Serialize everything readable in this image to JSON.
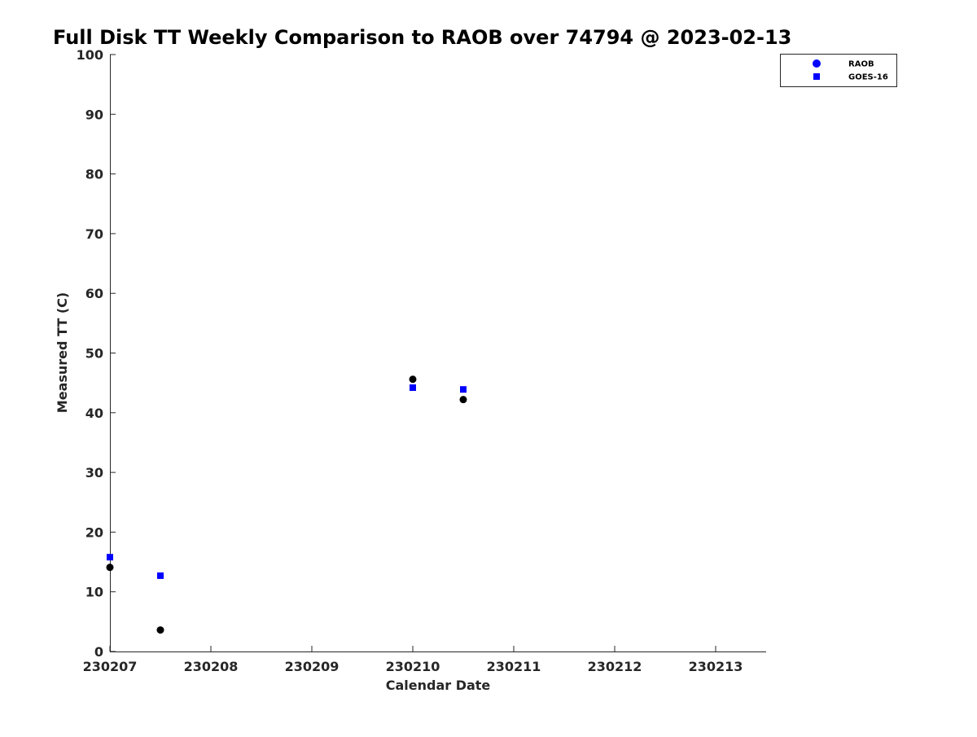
{
  "chart_data": {
    "type": "scatter",
    "title": "Full Disk TT Weekly Comparison to RAOB over 74794 @ 2023-02-13",
    "xlabel": "Calendar Date",
    "ylabel": "Measured TT (C)",
    "xlim": [
      230207,
      230213.5
    ],
    "ylim": [
      0,
      100
    ],
    "x_ticks": [
      230207,
      230208,
      230209,
      230210,
      230211,
      230212,
      230213
    ],
    "x_tick_labels": [
      "230207",
      "230208",
      "230209",
      "230210",
      "230211",
      "230212",
      "230213"
    ],
    "y_ticks": [
      0,
      10,
      20,
      30,
      40,
      50,
      60,
      70,
      80,
      90,
      100
    ],
    "y_tick_labels": [
      "0",
      "10",
      "20",
      "30",
      "40",
      "50",
      "60",
      "70",
      "80",
      "90",
      "100"
    ],
    "grid": false,
    "legend_position": "top-right",
    "series": [
      {
        "name": "RAOB",
        "marker": "circle",
        "legend_color": "#0000ff",
        "color": "#000000",
        "x": [
          230207,
          230207.5,
          230210,
          230210.5
        ],
        "y": [
          14.1,
          3.6,
          45.6,
          42.2
        ]
      },
      {
        "name": "GOES-16",
        "marker": "square",
        "legend_color": "#0000ff",
        "color": "#0000ff",
        "x": [
          230207,
          230207.5,
          230210,
          230210.5
        ],
        "y": [
          15.8,
          12.7,
          44.2,
          43.9
        ]
      }
    ]
  }
}
